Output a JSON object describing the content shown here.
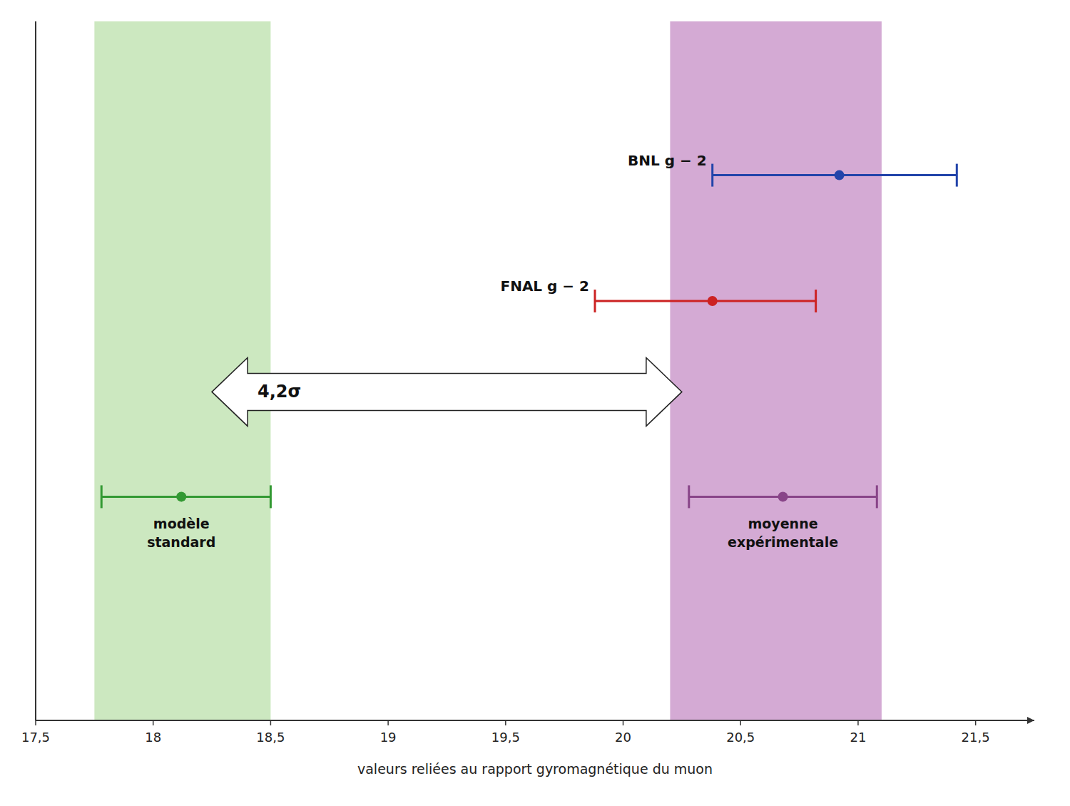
{
  "chart_data": {
    "type": "errorbar",
    "xlabel": "valeurs reliées au rapport gyromagnétique du muon",
    "xlim": [
      17.5,
      21.75
    ],
    "xticks": [
      {
        "value": 17.5,
        "label": "17,5"
      },
      18,
      {
        "value": 18.5,
        "label": "18,5"
      },
      19,
      {
        "value": 19.5,
        "label": "19,5"
      },
      20,
      {
        "value": 20.5,
        "label": "20,5"
      },
      21,
      {
        "value": 21.5,
        "label": "21,5"
      }
    ],
    "tick_labels": "x",
    "series": [
      {
        "name": "BNL g − 2",
        "color": "#2244aa",
        "values": [
          20.92
        ],
        "low": [
          20.38
        ],
        "high": [
          21.42
        ]
      },
      {
        "name": "FNAL g − 2",
        "color": "#cc2222",
        "values": [
          20.38
        ],
        "low": [
          19.88
        ],
        "high": [
          20.82
        ]
      },
      {
        "name": "modèle\nstandard",
        "color": "#339933",
        "values": [
          18.12
        ],
        "low": [
          17.78
        ],
        "high": [
          18.5
        ]
      },
      {
        "name": "moyenne\nexpérimentale",
        "color": "#884488",
        "values": [
          20.68
        ],
        "low": [
          20.28
        ],
        "high": [
          21.08
        ]
      }
    ],
    "bands": [
      {
        "xmin": 17.75,
        "xmax": 18.5,
        "color": "#cce8c0"
      },
      {
        "xmin": 20.2,
        "xmax": 21.1,
        "color": "#d4aad4"
      }
    ],
    "arrow": {
      "label": "4,2σ",
      "from": 18.25,
      "to": 20.25
    }
  }
}
